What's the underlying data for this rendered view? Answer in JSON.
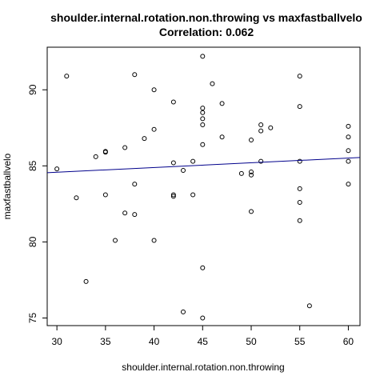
{
  "chart_data": {
    "type": "scatter",
    "title": "shoulder.internal.rotation.non.throwing vs maxfastballvelo",
    "subtitle": "Correlation: 0.062",
    "xlabel": "shoulder.internal.rotation.non.throwing",
    "ylabel": "maxfastballvelo",
    "xlim": [
      29,
      61.2
    ],
    "ylim": [
      74.5,
      92.8
    ],
    "x_ticks": [
      30,
      35,
      40,
      45,
      50,
      55,
      60
    ],
    "y_ticks": [
      75,
      80,
      85,
      90
    ],
    "grid": false,
    "point_color": "#000000",
    "fit_line_color": "#00008B",
    "fit_line": {
      "x": [
        29,
        61.2
      ],
      "y": [
        84.55,
        85.55
      ]
    },
    "points": [
      {
        "x": 30,
        "y": 84.8
      },
      {
        "x": 31,
        "y": 90.9
      },
      {
        "x": 32,
        "y": 82.9
      },
      {
        "x": 33,
        "y": 77.4
      },
      {
        "x": 34,
        "y": 85.6
      },
      {
        "x": 35,
        "y": 85.9
      },
      {
        "x": 35,
        "y": 85.95
      },
      {
        "x": 35,
        "y": 83.1
      },
      {
        "x": 36,
        "y": 80.1
      },
      {
        "x": 37,
        "y": 86.2
      },
      {
        "x": 37,
        "y": 81.9
      },
      {
        "x": 38,
        "y": 91.0
      },
      {
        "x": 38,
        "y": 83.8
      },
      {
        "x": 38,
        "y": 81.8
      },
      {
        "x": 39,
        "y": 86.8
      },
      {
        "x": 40,
        "y": 90.0
      },
      {
        "x": 40,
        "y": 87.4
      },
      {
        "x": 40,
        "y": 80.1
      },
      {
        "x": 42,
        "y": 89.2
      },
      {
        "x": 42,
        "y": 85.2
      },
      {
        "x": 42,
        "y": 83.0
      },
      {
        "x": 42,
        "y": 83.1
      },
      {
        "x": 43,
        "y": 84.7
      },
      {
        "x": 43,
        "y": 75.4
      },
      {
        "x": 44,
        "y": 85.3
      },
      {
        "x": 44,
        "y": 83.1
      },
      {
        "x": 45,
        "y": 92.2
      },
      {
        "x": 45,
        "y": 88.8
      },
      {
        "x": 45,
        "y": 88.5
      },
      {
        "x": 45,
        "y": 88.1
      },
      {
        "x": 45,
        "y": 87.7
      },
      {
        "x": 45,
        "y": 86.4
      },
      {
        "x": 45,
        "y": 78.3
      },
      {
        "x": 45,
        "y": 75.0
      },
      {
        "x": 46,
        "y": 90.4
      },
      {
        "x": 47,
        "y": 89.1
      },
      {
        "x": 47,
        "y": 86.9
      },
      {
        "x": 49,
        "y": 84.5
      },
      {
        "x": 50,
        "y": 86.7
      },
      {
        "x": 50,
        "y": 84.6
      },
      {
        "x": 50,
        "y": 84.4
      },
      {
        "x": 50,
        "y": 82.0
      },
      {
        "x": 51,
        "y": 87.7
      },
      {
        "x": 51,
        "y": 87.3
      },
      {
        "x": 51,
        "y": 85.3
      },
      {
        "x": 52,
        "y": 87.5
      },
      {
        "x": 55,
        "y": 90.9
      },
      {
        "x": 55,
        "y": 88.9
      },
      {
        "x": 55,
        "y": 85.3
      },
      {
        "x": 55,
        "y": 83.5
      },
      {
        "x": 55,
        "y": 82.6
      },
      {
        "x": 55,
        "y": 81.4
      },
      {
        "x": 56,
        "y": 75.8
      },
      {
        "x": 60,
        "y": 87.6
      },
      {
        "x": 60,
        "y": 86.9
      },
      {
        "x": 60,
        "y": 86.0
      },
      {
        "x": 60,
        "y": 85.3
      },
      {
        "x": 60,
        "y": 83.8
      }
    ]
  }
}
